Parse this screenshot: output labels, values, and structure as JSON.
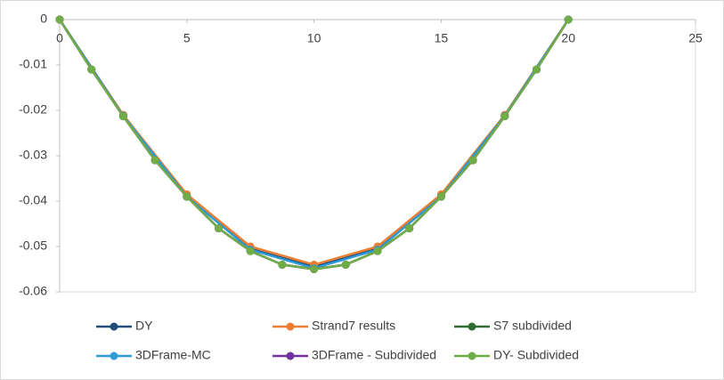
{
  "chart_data": {
    "type": "line",
    "xlim": [
      0,
      25
    ],
    "xticks": [
      0,
      5,
      10,
      15,
      20,
      25
    ],
    "ylim": [
      -0.06,
      0
    ],
    "yticks": [
      0,
      -0.01,
      -0.02,
      -0.03,
      -0.04,
      -0.05,
      -0.06
    ],
    "legend": "bottom",
    "series": [
      {
        "name": "DY",
        "color": "#1f4e79",
        "x": [
          0,
          2.5,
          5,
          7.5,
          10,
          12.5,
          15,
          17.5,
          20
        ],
        "values": [
          0,
          -0.0212,
          -0.039,
          -0.0505,
          -0.0545,
          -0.0505,
          -0.039,
          -0.0212,
          0
        ]
      },
      {
        "name": "Strand7 results",
        "color": "#ed7d31",
        "x": [
          0,
          2.5,
          5,
          7.5,
          10,
          12.5,
          15,
          17.5,
          20
        ],
        "values": [
          0,
          -0.021,
          -0.0385,
          -0.05,
          -0.054,
          -0.05,
          -0.0385,
          -0.021,
          0
        ]
      },
      {
        "name": "S7 subdivided",
        "color": "#2e6b30",
        "x": [
          0,
          1.25,
          2.5,
          3.75,
          5,
          6.25,
          7.5,
          8.75,
          10,
          11.25,
          12.5,
          13.75,
          15,
          16.25,
          17.5,
          18.75,
          20
        ],
        "values": [
          0,
          -0.011,
          -0.0213,
          -0.031,
          -0.039,
          -0.046,
          -0.051,
          -0.054,
          -0.055,
          -0.054,
          -0.051,
          -0.046,
          -0.039,
          -0.031,
          -0.0213,
          -0.011,
          0
        ]
      },
      {
        "name": "3DFrame-MC",
        "color": "#2e9bd6",
        "x": [
          0,
          2.5,
          5,
          7.5,
          10,
          12.5,
          15,
          17.5,
          20
        ],
        "values": [
          0,
          -0.0212,
          -0.039,
          -0.0507,
          -0.0548,
          -0.0507,
          -0.039,
          -0.0212,
          0
        ]
      },
      {
        "name": "3DFrame - Subdivided",
        "color": "#7030a0",
        "x": [
          0,
          1.25,
          2.5,
          3.75,
          5,
          6.25,
          7.5,
          8.75,
          10,
          11.25,
          12.5,
          13.75,
          15,
          16.25,
          17.5,
          18.75,
          20
        ],
        "values": [
          0,
          -0.011,
          -0.0213,
          -0.031,
          -0.039,
          -0.046,
          -0.051,
          -0.054,
          -0.055,
          -0.054,
          -0.051,
          -0.046,
          -0.039,
          -0.031,
          -0.0213,
          -0.011,
          0
        ]
      },
      {
        "name": "DY- Subdivided",
        "color": "#70ad47",
        "x": [
          0,
          1.25,
          2.5,
          3.75,
          5,
          6.25,
          7.5,
          8.75,
          10,
          11.25,
          12.5,
          13.75,
          15,
          16.25,
          17.5,
          18.75,
          20
        ],
        "values": [
          0,
          -0.011,
          -0.0213,
          -0.031,
          -0.039,
          -0.046,
          -0.051,
          -0.054,
          -0.055,
          -0.054,
          -0.051,
          -0.046,
          -0.039,
          -0.031,
          -0.0213,
          -0.011,
          0
        ]
      }
    ]
  }
}
